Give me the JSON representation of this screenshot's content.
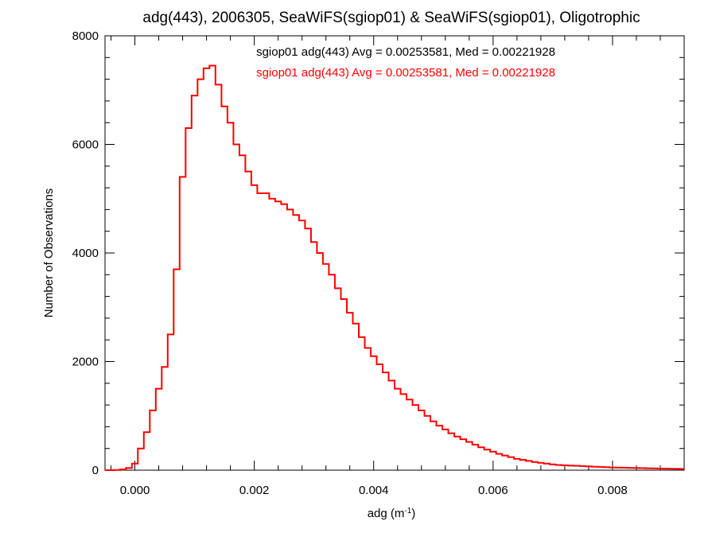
{
  "chart_data": {
    "type": "line",
    "title": "adg(443), 2006305, SeaWiFS(sgiop01) & SeaWiFS(sgiop01), Oligotrophic",
    "xlabel": {
      "base": "adg (m",
      "sup": "-1",
      "close": ")"
    },
    "ylabel": "Number of Observations",
    "xlim": [
      -0.0005,
      0.0092
    ],
    "ylim": [
      0,
      8000
    ],
    "grid": false,
    "x_ticks": [
      "0.000",
      "0.002",
      "0.004",
      "0.006",
      "0.008"
    ],
    "x_tick_values": [
      0.0,
      0.002,
      0.004,
      0.006,
      0.008
    ],
    "y_ticks": [
      "0",
      "2000",
      "4000",
      "6000",
      "8000"
    ],
    "y_tick_values": [
      0,
      2000,
      4000,
      6000,
      8000
    ],
    "annotations": [
      {
        "text": "sgiop01 adg(443) Avg = 0.00253581, Med = 0.00221928",
        "color": "#000000"
      },
      {
        "text": "sgiop01 adg(443) Avg = 0.00253581, Med = 0.00221928",
        "color": "#ff0000"
      }
    ],
    "series": [
      {
        "color": "#ff0000",
        "x": [
          -0.0005,
          -0.0004,
          -0.0003,
          -0.0002,
          -0.0001,
          0.0,
          0.0001,
          0.0002,
          0.0003,
          0.0004,
          0.0005,
          0.0006,
          0.0007,
          0.0008,
          0.0009,
          0.001,
          0.0011,
          0.0012,
          0.0013,
          0.0014,
          0.0015,
          0.0016,
          0.0017,
          0.0018,
          0.0019,
          0.002,
          0.0021,
          0.0022,
          0.0023,
          0.0024,
          0.0025,
          0.0026,
          0.0027,
          0.0028,
          0.0029,
          0.003,
          0.0031,
          0.0032,
          0.0033,
          0.0034,
          0.0035,
          0.0036,
          0.0037,
          0.0038,
          0.0039,
          0.004,
          0.0041,
          0.0042,
          0.0043,
          0.0044,
          0.0045,
          0.0046,
          0.0047,
          0.0048,
          0.0049,
          0.005,
          0.0051,
          0.0052,
          0.0053,
          0.0054,
          0.0055,
          0.0056,
          0.0057,
          0.0058,
          0.0059,
          0.006,
          0.0061,
          0.0062,
          0.0063,
          0.0064,
          0.0065,
          0.0066,
          0.0067,
          0.0068,
          0.0069,
          0.007,
          0.0071,
          0.0072,
          0.0073,
          0.0074,
          0.0075,
          0.0076,
          0.0077,
          0.0078,
          0.0079,
          0.008,
          0.0081,
          0.0082,
          0.0083,
          0.0084,
          0.0085,
          0.0086,
          0.0087,
          0.0088,
          0.0089,
          0.009,
          0.0091,
          0.0092
        ],
        "y": [
          0,
          0,
          5,
          15,
          40,
          120,
          400,
          700,
          1100,
          1500,
          1900,
          2500,
          3700,
          5400,
          6300,
          6900,
          7200,
          7400,
          7450,
          7100,
          6700,
          6400,
          6000,
          5800,
          5500,
          5250,
          5100,
          5100,
          5000,
          4950,
          4900,
          4800,
          4700,
          4600,
          4450,
          4200,
          4000,
          3800,
          3600,
          3350,
          3150,
          2900,
          2700,
          2450,
          2250,
          2100,
          1950,
          1800,
          1650,
          1500,
          1400,
          1300,
          1200,
          1100,
          1000,
          900,
          820,
          750,
          680,
          620,
          570,
          520,
          470,
          420,
          380,
          340,
          300,
          270,
          240,
          210,
          190,
          170,
          150,
          135,
          120,
          105,
          95,
          90,
          85,
          80,
          75,
          70,
          65,
          60,
          55,
          50,
          48,
          45,
          42,
          40,
          38,
          35,
          32,
          30,
          28,
          26,
          24,
          22
        ]
      }
    ]
  }
}
